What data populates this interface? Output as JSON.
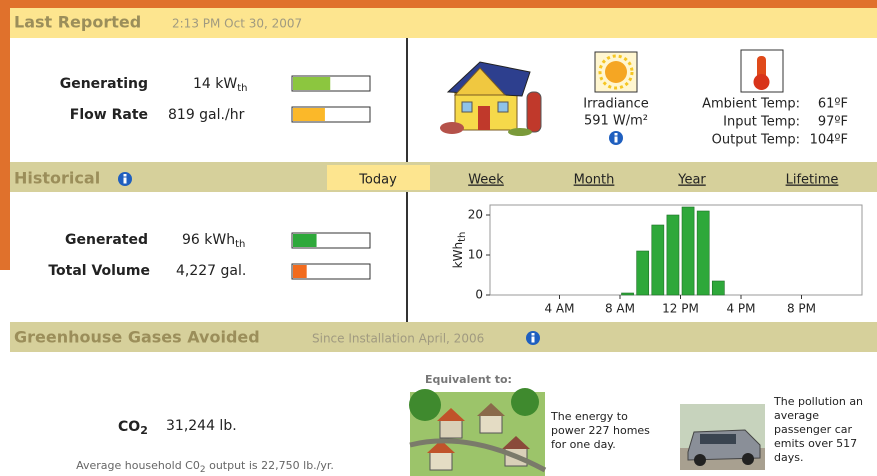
{
  "last_reported": {
    "title": "Last Reported",
    "timestamp": "2:13 PM Oct 30, 2007"
  },
  "current": {
    "generating": {
      "label": "Generating",
      "value": "14 kW",
      "unit_sub": "th",
      "meter": 49
    },
    "flow_rate": {
      "label": "Flow Rate",
      "value": "819 gal./hr",
      "meter": 42
    }
  },
  "irradiance": {
    "label": "Irradiance",
    "value": "591 W/m²"
  },
  "temperatures": [
    {
      "label": "Ambient Temp:",
      "value": "61ºF"
    },
    {
      "label": "Input Temp:",
      "value": "97ºF"
    },
    {
      "label": "Output Temp:",
      "value": "104ºF"
    }
  ],
  "historical": {
    "title": "Historical",
    "tabs": [
      "Today",
      "Week",
      "Month",
      "Year",
      "Lifetime"
    ],
    "selected_tab": 0,
    "generated": {
      "label": "Generated",
      "value": "96 kWh",
      "unit_sub": "th",
      "meter": 31
    },
    "total_volume": {
      "label": "Total Volume",
      "value": "4,227 gal.",
      "meter": 18
    }
  },
  "chart_data": {
    "type": "bar",
    "y_label": "kWh",
    "y_label_sub": "th",
    "x": [
      8,
      9,
      10,
      11,
      12,
      13,
      14
    ],
    "values": [
      0.5,
      11,
      17.5,
      20,
      22,
      21,
      3.5
    ],
    "color": "#2ea83a",
    "xlim": [
      0,
      24
    ],
    "xticks": [
      {
        "value": 4,
        "label": "4 AM"
      },
      {
        "value": 8,
        "label": "8 AM"
      },
      {
        "value": 12,
        "label": "12 PM"
      },
      {
        "value": 16,
        "label": "4 PM"
      },
      {
        "value": 20,
        "label": "8 PM"
      }
    ],
    "ylim": [
      0,
      22.5
    ],
    "yticks": [
      0,
      10,
      20
    ]
  },
  "greenhouse": {
    "title": "Greenhouse Gases Avoided",
    "subtitle": "Since Installation April, 2006",
    "co2": {
      "label": "CO",
      "label_sub": "2",
      "value": "31,244 lb."
    },
    "average": {
      "prefix": "Average household C0",
      "sub": "2",
      "suffix": " output is 22,750 lb./yr."
    },
    "equivalent_title": "Equivalent to:",
    "homes": [
      "The energy to",
      "power 227 homes",
      "for one day."
    ],
    "car": [
      "The pollution an",
      "average",
      "passenger car",
      "emits over 517",
      "days."
    ]
  }
}
